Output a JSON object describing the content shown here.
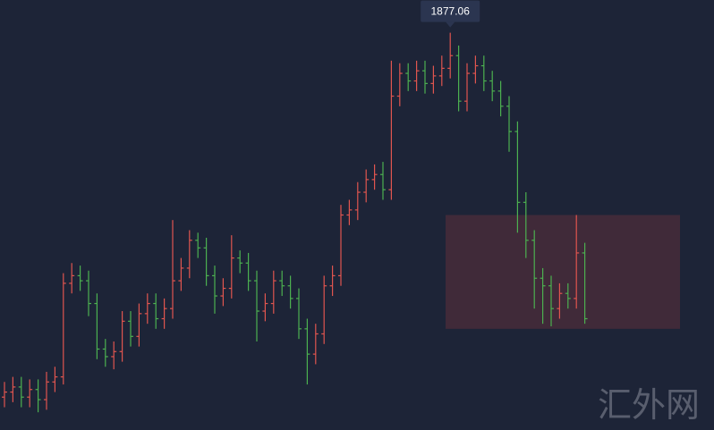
{
  "chart_data": {
    "type": "ohlc",
    "ylim": [
      1720,
      1890
    ],
    "up_color": "#e0554f",
    "down_color": "#4cb050",
    "open": [
      1733,
      1735,
      1737,
      1733,
      1736,
      1732,
      1739,
      1741,
      1778,
      1781,
      1779,
      1770,
      1752,
      1749,
      1751,
      1763,
      1757,
      1766,
      1770,
      1764,
      1768,
      1779,
      1784,
      1795,
      1792,
      1781,
      1773,
      1776,
      1788,
      1786,
      1779,
      1767,
      1770,
      1779,
      1777,
      1772,
      1760,
      1750,
      1758,
      1777,
      1781,
      1805,
      1807,
      1814,
      1819,
      1821,
      1815,
      1852,
      1861,
      1858,
      1862,
      1857,
      1860,
      1863,
      1868,
      1850,
      1861,
      1864,
      1858,
      1854,
      1848,
      1838,
      1810,
      1795,
      1780,
      1777,
      1768,
      1774,
      1772,
      1790
    ],
    "high": [
      1739,
      1741,
      1741,
      1740,
      1740,
      1743,
      1745,
      1782,
      1786,
      1785,
      1783,
      1774,
      1756,
      1755,
      1767,
      1767,
      1770,
      1774,
      1774,
      1772,
      1803,
      1788,
      1799,
      1798,
      1796,
      1785,
      1780,
      1797,
      1791,
      1790,
      1783,
      1774,
      1783,
      1783,
      1781,
      1776,
      1764,
      1762,
      1781,
      1785,
      1809,
      1811,
      1818,
      1823,
      1825,
      1826,
      1866,
      1865,
      1865,
      1866,
      1866,
      1864,
      1868,
      1877.06,
      1872,
      1865,
      1868,
      1868,
      1862,
      1858,
      1852,
      1842,
      1814,
      1799,
      1784,
      1781,
      1778,
      1778,
      1805,
      1794
    ],
    "low": [
      1729,
      1731,
      1729,
      1729,
      1727,
      1728,
      1735,
      1738,
      1774,
      1775,
      1765,
      1748,
      1745,
      1744,
      1747,
      1753,
      1753,
      1762,
      1760,
      1760,
      1764,
      1775,
      1780,
      1788,
      1777,
      1766,
      1769,
      1772,
      1782,
      1775,
      1755,
      1763,
      1766,
      1773,
      1768,
      1756,
      1738,
      1746,
      1754,
      1773,
      1777,
      1801,
      1803,
      1810,
      1815,
      1811,
      1811,
      1848,
      1854,
      1854,
      1853,
      1853,
      1856,
      1859,
      1846,
      1846,
      1857,
      1854,
      1850,
      1844,
      1830,
      1798,
      1788,
      1768,
      1762,
      1761,
      1764,
      1768,
      1768,
      1762
    ],
    "close": [
      1735,
      1737,
      1733,
      1736,
      1732,
      1739,
      1741,
      1778,
      1781,
      1779,
      1770,
      1752,
      1749,
      1751,
      1763,
      1757,
      1766,
      1770,
      1764,
      1768,
      1779,
      1784,
      1795,
      1792,
      1781,
      1773,
      1776,
      1788,
      1786,
      1779,
      1767,
      1770,
      1779,
      1777,
      1772,
      1760,
      1750,
      1758,
      1777,
      1781,
      1805,
      1807,
      1814,
      1819,
      1821,
      1815,
      1852,
      1861,
      1858,
      1862,
      1857,
      1860,
      1863,
      1868,
      1850,
      1861,
      1864,
      1858,
      1854,
      1848,
      1838,
      1810,
      1795,
      1780,
      1777,
      1768,
      1774,
      1772,
      1790,
      1764
    ],
    "zone": {
      "high": 1805,
      "low": 1760,
      "color": "#4a2c3a"
    },
    "peak_index": 53,
    "watermark": "汇外网"
  }
}
